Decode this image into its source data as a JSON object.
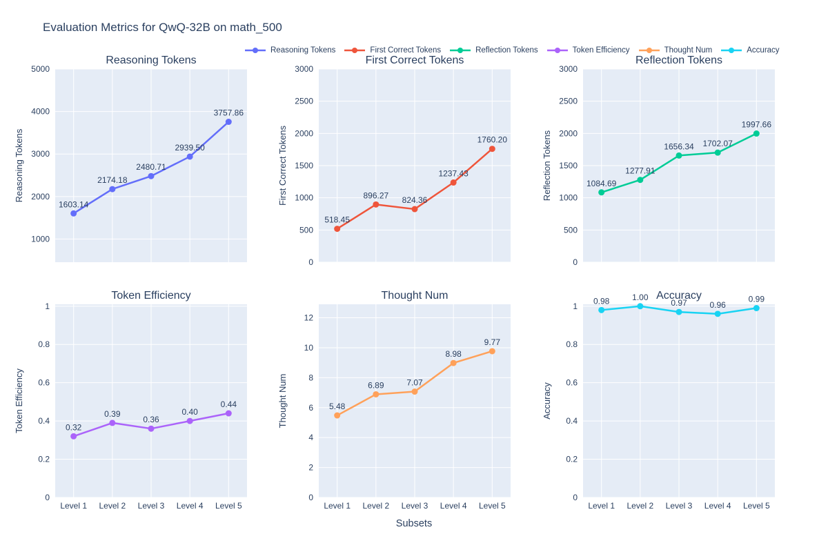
{
  "figure": {
    "title": "Evaluation Metrics for QwQ-32B on math_500",
    "xaxis_title": "Subsets",
    "colors": {
      "background": "#ffffff",
      "plot_background": "#E5ECF6",
      "grid": "#ffffff",
      "text": "#2a3f5f"
    }
  },
  "legend": {
    "position": "top-right",
    "items": [
      {
        "label": "Reasoning Tokens",
        "color": "#636EFA"
      },
      {
        "label": "First Correct Tokens",
        "color": "#EF553B"
      },
      {
        "label": "Reflection Tokens",
        "color": "#00CC96"
      },
      {
        "label": "Token Efficiency",
        "color": "#AB63FA"
      },
      {
        "label": "Thought Num",
        "color": "#FFA15A"
      },
      {
        "label": "Accuracy",
        "color": "#19D3F3"
      }
    ]
  },
  "chart_data": [
    {
      "type": "line",
      "title": "Reasoning Tokens",
      "ylabel": "Reasoning Tokens",
      "series_color": "#636EFA",
      "categories": [
        "Level 1",
        "Level 2",
        "Level 3",
        "Level 4",
        "Level 5"
      ],
      "values": [
        1603.14,
        2174.18,
        2480.71,
        2939.5,
        3757.86
      ],
      "point_labels": [
        "1603.14",
        "2174.18",
        "2480.71",
        "2939.50",
        "3757.86"
      ],
      "yticks": [
        1000,
        2000,
        3000,
        4000,
        5000
      ],
      "yrange": [
        455,
        5000
      ],
      "grid": true,
      "show_x_tick_labels": false
    },
    {
      "type": "line",
      "title": "First Correct Tokens",
      "ylabel": "First Correct Tokens",
      "series_color": "#EF553B",
      "categories": [
        "Level 1",
        "Level 2",
        "Level 3",
        "Level 4",
        "Level 5"
      ],
      "values": [
        518.45,
        896.27,
        824.36,
        1237.43,
        1760.2
      ],
      "point_labels": [
        "518.45",
        "896.27",
        "824.36",
        "1237.43",
        "1760.20"
      ],
      "yticks": [
        0,
        500,
        1000,
        1500,
        2000,
        2500,
        3000
      ],
      "yrange": [
        0,
        3000
      ],
      "grid": true,
      "show_x_tick_labels": false
    },
    {
      "type": "line",
      "title": "Reflection Tokens",
      "ylabel": "Reflection Tokens",
      "series_color": "#00CC96",
      "categories": [
        "Level 1",
        "Level 2",
        "Level 3",
        "Level 4",
        "Level 5"
      ],
      "values": [
        1084.69,
        1277.91,
        1656.34,
        1702.07,
        1997.66
      ],
      "point_labels": [
        "1084.69",
        "1277.91",
        "1656.34",
        "1702.07",
        "1997.66"
      ],
      "yticks": [
        0,
        500,
        1000,
        1500,
        2000,
        2500,
        3000
      ],
      "yrange": [
        0,
        3000
      ],
      "grid": true,
      "show_x_tick_labels": false
    },
    {
      "type": "line",
      "title": "Token Efficiency",
      "ylabel": "Token Efficiency",
      "series_color": "#AB63FA",
      "categories": [
        "Level 1",
        "Level 2",
        "Level 3",
        "Level 4",
        "Level 5"
      ],
      "values": [
        0.32,
        0.39,
        0.36,
        0.4,
        0.44
      ],
      "point_labels": [
        "0.32",
        "0.39",
        "0.36",
        "0.40",
        "0.44"
      ],
      "yticks": [
        0,
        0.2,
        0.4,
        0.6,
        0.8,
        1
      ],
      "yrange": [
        0,
        1.01
      ],
      "grid": true,
      "show_x_tick_labels": true
    },
    {
      "type": "line",
      "title": "Thought Num",
      "ylabel": "Thought Num",
      "series_color": "#FFA15A",
      "categories": [
        "Level 1",
        "Level 2",
        "Level 3",
        "Level 4",
        "Level 5"
      ],
      "values": [
        5.48,
        6.89,
        7.07,
        8.98,
        9.77
      ],
      "point_labels": [
        "5.48",
        "6.89",
        "7.07",
        "8.98",
        "9.77"
      ],
      "yticks": [
        0,
        2,
        4,
        6,
        8,
        10,
        12
      ],
      "yrange": [
        0,
        12.9
      ],
      "grid": true,
      "show_x_tick_labels": true
    },
    {
      "type": "line",
      "title": "Accuracy",
      "ylabel": "Accuracy",
      "series_color": "#19D3F3",
      "categories": [
        "Level 1",
        "Level 2",
        "Level 3",
        "Level 4",
        "Level 5"
      ],
      "values": [
        0.98,
        1.0,
        0.97,
        0.96,
        0.99
      ],
      "point_labels": [
        "0.98",
        "1.00",
        "0.97",
        "0.96",
        "0.99"
      ],
      "yticks": [
        0,
        0.2,
        0.4,
        0.6,
        0.8,
        1
      ],
      "yrange": [
        0,
        1.01
      ],
      "grid": true,
      "show_x_tick_labels": true
    }
  ]
}
